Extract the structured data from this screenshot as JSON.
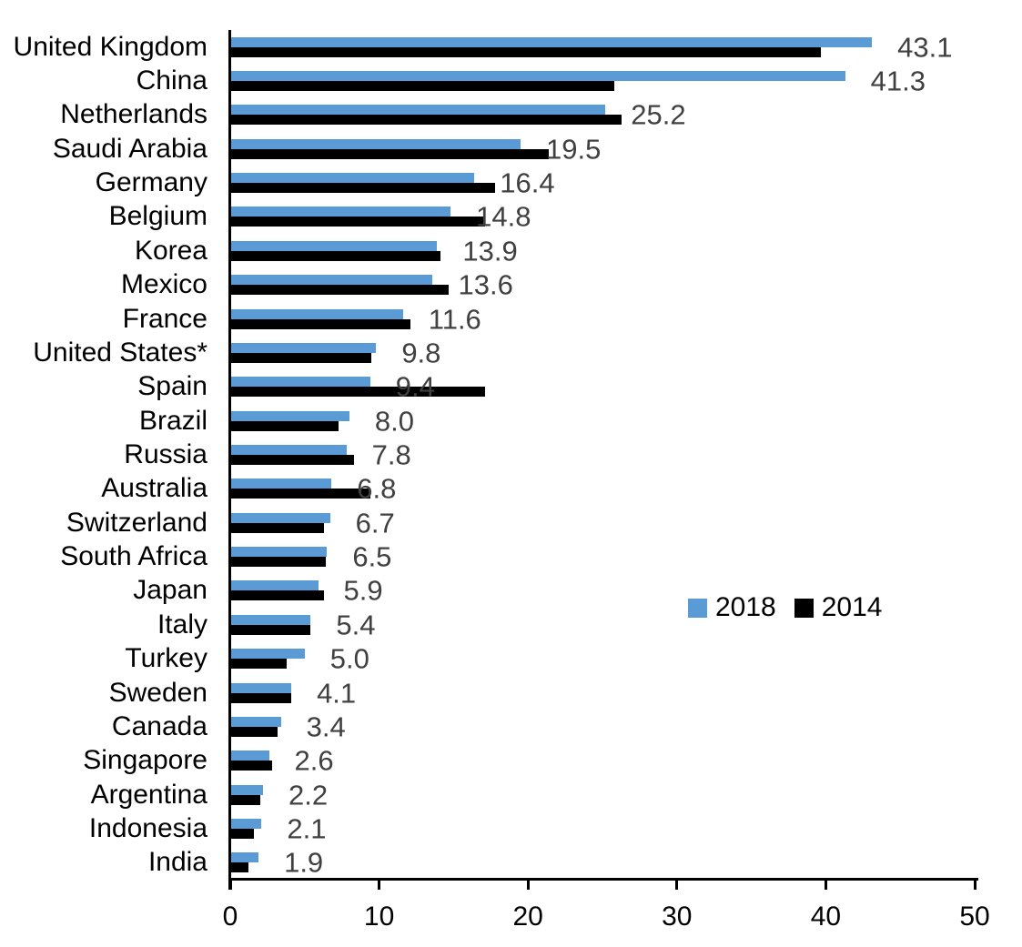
{
  "chart_data": {
    "type": "bar",
    "orientation": "horizontal",
    "title": "",
    "xlabel": "",
    "ylabel": "",
    "xlim": [
      0,
      50
    ],
    "x_ticks": [
      0,
      10,
      20,
      30,
      40,
      50
    ],
    "x_tick_labels": [
      "0",
      "10",
      "20",
      "30",
      "40",
      "50"
    ],
    "grid": false,
    "legend_position": "middle-right",
    "data_label_color": "#404040",
    "categories": [
      "United Kingdom",
      "China",
      "Netherlands",
      "Saudi Arabia",
      "Germany",
      "Belgium",
      "Korea",
      "Mexico",
      "France",
      "United States*",
      "Spain",
      "Brazil",
      "Russia",
      "Australia",
      "Switzerland",
      "South Africa",
      "Japan",
      "Italy",
      "Turkey",
      "Sweden",
      "Canada",
      "Singapore",
      "Argentina",
      "Indonesia",
      "India"
    ],
    "series": [
      {
        "name": "2018",
        "color": "#5B9BD5",
        "values": [
          43.1,
          41.3,
          25.2,
          19.5,
          16.4,
          14.8,
          13.9,
          13.6,
          11.6,
          9.8,
          9.4,
          8.0,
          7.8,
          6.8,
          6.7,
          6.5,
          5.9,
          5.4,
          5.0,
          4.1,
          3.4,
          2.6,
          2.2,
          2.1,
          1.9
        ],
        "data_labels": [
          "43.1",
          "41.3",
          "25.2",
          "19.5",
          "16.4",
          "14.8",
          "13.9",
          "13.6",
          "11.6",
          "9.8",
          "9.4",
          "8.0",
          "7.8",
          "6.8",
          "6.7",
          "6.5",
          "5.9",
          "5.4",
          "5.0",
          "4.1",
          "3.4",
          "2.6",
          "2.2",
          "2.1",
          "1.9"
        ]
      },
      {
        "name": "2014",
        "color": "#000000",
        "values": [
          39.7,
          25.8,
          26.3,
          21.4,
          17.8,
          17.1,
          14.1,
          14.7,
          12.1,
          9.5,
          17.1,
          7.3,
          8.3,
          9.4,
          6.3,
          6.4,
          6.3,
          5.4,
          3.8,
          4.1,
          3.2,
          2.8,
          2.0,
          1.6,
          1.2
        ]
      }
    ]
  },
  "legend": {
    "items": [
      {
        "label": "2018",
        "color": "#5B9BD5"
      },
      {
        "label": "2014",
        "color": "#000000"
      }
    ]
  }
}
